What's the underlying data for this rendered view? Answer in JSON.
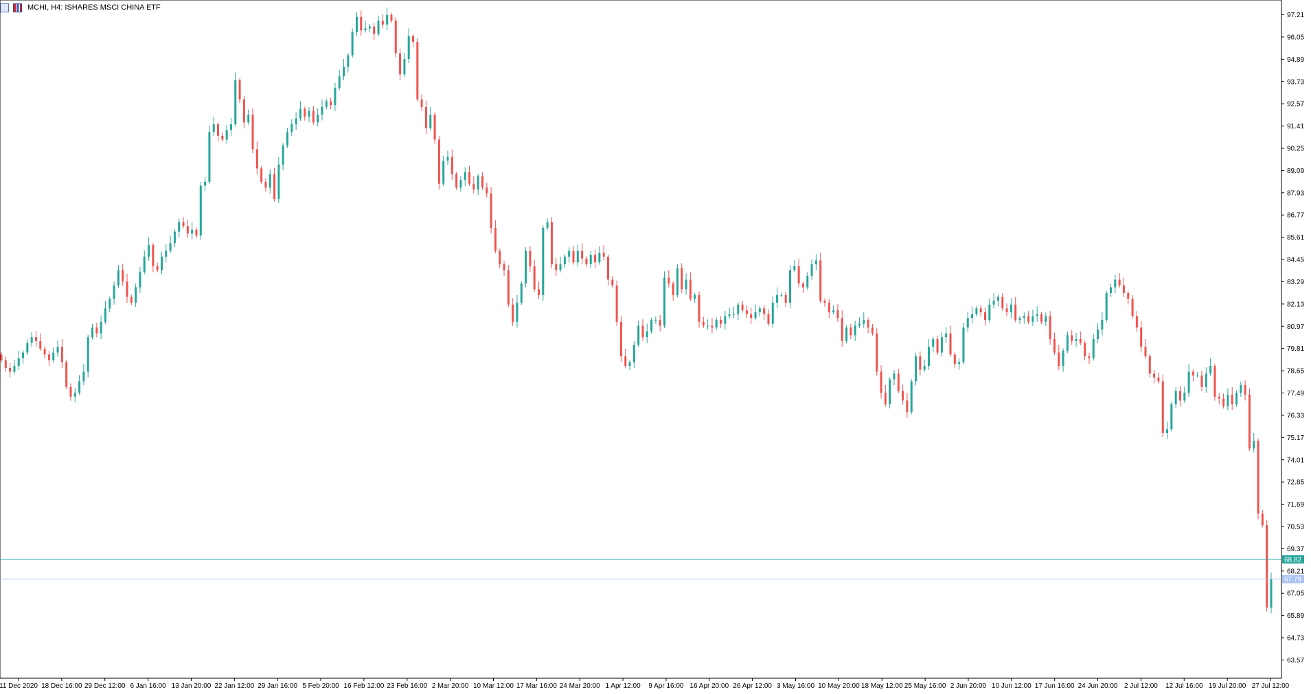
{
  "window": {
    "title": "MCHI, H4:  ISHARES MSCI CHINA ETF",
    "icons": [
      "chart-window-icon",
      "bar-chart-icon"
    ]
  },
  "colors": {
    "bull": "#26a69a",
    "bear": "#ef5350",
    "bid_line": "#26a69a",
    "ask_line": "#a9c3f2",
    "axis": "#000000"
  },
  "chart_data": {
    "type": "candlestick",
    "symbol": "MCHI",
    "timeframe": "H4",
    "title": "MCHI, H4:  ISHARES MSCI CHINA ETF",
    "y_ticks": [
      97.21,
      96.05,
      94.89,
      93.73,
      92.57,
      91.41,
      90.25,
      89.09,
      87.93,
      86.77,
      85.61,
      84.45,
      83.29,
      82.13,
      80.97,
      79.81,
      78.65,
      77.49,
      76.33,
      75.17,
      74.01,
      72.85,
      71.69,
      70.53,
      69.37,
      68.21,
      67.05,
      65.89,
      64.73,
      63.57
    ],
    "ylim": [
      62.62,
      97.98
    ],
    "x_ticks": [
      "11 Dec 2020",
      "18 Dec 16:00",
      "29 Dec 12:00",
      "6 Jan 16:00",
      "13 Jan 20:00",
      "22 Jan 12:00",
      "29 Jan 16:00",
      "5 Feb 20:00",
      "16 Feb 12:00",
      "23 Feb 16:00",
      "2 Mar 20:00",
      "10 Mar 12:00",
      "17 Mar 16:00",
      "24 Mar 20:00",
      "1 Apr 12:00",
      "9 Apr 16:00",
      "16 Apr 20:00",
      "26 Apr 12:00",
      "3 May 16:00",
      "10 May 20:00",
      "18 May 12:00",
      "25 May 16:00",
      "2 Jun 20:00",
      "10 Jun 12:00",
      "17 Jun 16:00",
      "24 Jun 20:00",
      "2 Jul 12:00",
      "12 Jul 16:00",
      "19 Jul 20:00",
      "27 Jul 12:00"
    ],
    "price_labels": [
      {
        "role": "bid",
        "value": "68.82"
      },
      {
        "role": "ask",
        "value": "67.79"
      }
    ],
    "candle_closes": [
      79.2,
      78.8,
      78.6,
      78.9,
      79.3,
      79.6,
      80.1,
      80.4,
      80.2,
      79.8,
      79.5,
      79.2,
      79.6,
      79.9,
      79.1,
      77.8,
      77.3,
      77.5,
      78.1,
      78.6,
      80.4,
      80.9,
      80.6,
      81.2,
      81.9,
      82.4,
      83.1,
      83.9,
      83.3,
      82.5,
      82.2,
      83.0,
      83.8,
      84.6,
      85.2,
      84.1,
      83.9,
      84.6,
      84.9,
      85.3,
      85.9,
      86.4,
      86.2,
      85.8,
      86.0,
      85.7,
      88.3,
      88.5,
      91.1,
      91.5,
      90.9,
      90.7,
      91.2,
      91.5,
      93.8,
      92.8,
      91.6,
      92.0,
      90.2,
      89.2,
      88.5,
      88.2,
      88.9,
      87.6,
      89.4,
      90.4,
      91.1,
      91.5,
      91.8,
      92.3,
      91.9,
      92.2,
      91.6,
      92.0,
      92.4,
      92.7,
      92.5,
      93.4,
      94.0,
      94.5,
      95.1,
      96.3,
      97.1,
      96.4,
      96.5,
      96.6,
      96.2,
      96.9,
      96.7,
      97.2,
      96.9,
      95.2,
      94.1,
      94.9,
      96.1,
      95.8,
      92.8,
      92.4,
      91.3,
      92.0,
      90.7,
      88.4,
      89.6,
      89.8,
      88.9,
      88.2,
      88.6,
      89.0,
      88.4,
      88.1,
      88.8,
      88.2,
      87.9,
      86.1,
      84.9,
      84.2,
      83.9,
      82.1,
      81.2,
      82.2,
      83.2,
      84.9,
      84.1,
      82.9,
      82.6,
      86.1,
      86.4,
      84.2,
      83.9,
      84.2,
      84.6,
      84.9,
      84.3,
      84.9,
      84.5,
      84.2,
      84.7,
      84.3,
      84.8,
      84.6,
      83.4,
      83.1,
      81.2,
      79.4,
      78.9,
      79.1,
      80.0,
      81.0,
      80.4,
      80.7,
      81.3,
      81.3,
      81.0,
      83.5,
      83.2,
      82.6,
      84.0,
      82.9,
      83.4,
      82.4,
      82.6,
      81.2,
      81.0,
      81.0,
      80.9,
      81.3,
      81.1,
      81.5,
      81.6,
      81.6,
      82.1,
      81.8,
      81.6,
      81.4,
      81.7,
      81.9,
      81.6,
      81.1,
      82.2,
      82.6,
      82.6,
      82.2,
      83.9,
      84.1,
      83.2,
      83.0,
      83.6,
      84.2,
      84.4,
      82.3,
      82.2,
      81.7,
      81.8,
      81.4,
      80.2,
      80.9,
      80.5,
      81.0,
      81.1,
      81.3,
      80.9,
      80.6,
      78.6,
      77.5,
      76.9,
      78.2,
      78.5,
      77.6,
      77.1,
      76.5,
      78.1,
      79.4,
      78.7,
      78.9,
      79.9,
      80.3,
      79.6,
      80.4,
      80.6,
      79.5,
      79.0,
      79.1,
      80.9,
      81.4,
      81.6,
      81.9,
      81.7,
      81.3,
      82.1,
      82.3,
      82.5,
      81.9,
      81.7,
      82.1,
      81.3,
      81.4,
      81.5,
      81.2,
      81.5,
      81.6,
      81.2,
      81.5,
      80.3,
      79.6,
      78.9,
      79.7,
      80.5,
      80.2,
      80.3,
      80.1,
      79.4,
      79.3,
      80.3,
      80.8,
      81.3,
      82.7,
      83.0,
      83.4,
      83.1,
      82.7,
      82.4,
      81.5,
      80.9,
      79.9,
      79.4,
      78.5,
      78.3,
      78.1,
      75.4,
      75.6,
      76.9,
      77.6,
      77.1,
      77.5,
      78.6,
      78.4,
      78.4,
      77.8,
      78.5,
      78.9,
      77.3,
      77.2,
      76.8,
      77.4,
      76.9,
      77.5,
      77.9,
      77.4,
      74.6,
      75.0,
      71.2,
      70.6,
      66.3,
      67.8
    ]
  }
}
